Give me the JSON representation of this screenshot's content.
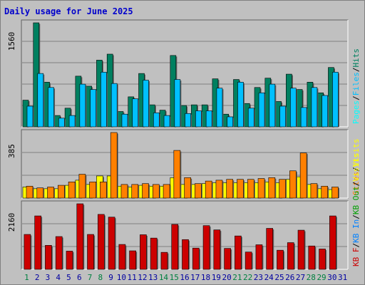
{
  "colors": {
    "frame_bg": "#c0c0c0",
    "plot_bg": "#c0c0c0",
    "title": "#0000cc",
    "hits": "#008060",
    "files": "#00c0ff",
    "pages": "#00ffff",
    "visits": "#ffff00",
    "sites": "#ff8000",
    "kb_f": "#cc0000",
    "kb_in": "#0080ff",
    "kb_out": "#00a000",
    "weekend_day": "#008040",
    "weekday_day": "#0000a0"
  },
  "chart_data": {
    "type": "bar",
    "title": "Daily usage for June 2025",
    "categories": [
      "1",
      "2",
      "3",
      "4",
      "5",
      "6",
      "7",
      "8",
      "9",
      "10",
      "11",
      "12",
      "13",
      "14",
      "15",
      "16",
      "17",
      "18",
      "19",
      "20",
      "21",
      "22",
      "23",
      "24",
      "25",
      "26",
      "27",
      "28",
      "29",
      "30",
      "31"
    ],
    "weekend_days": [
      "1",
      "7",
      "8",
      "14",
      "15",
      "21",
      "22",
      "28",
      "29"
    ],
    "panels": [
      {
        "id": "hits-files-pages",
        "ymax_label": "1560",
        "ylim": [
          0,
          1560
        ],
        "legend": [
          {
            "label": "Pages",
            "color": "#00ffff"
          },
          {
            "label": "/",
            "color": "#000000"
          },
          {
            "label": "Files",
            "color": "#00c0ff"
          },
          {
            "label": "/",
            "color": "#000000"
          },
          {
            "label": "Hits",
            "color": "#008060"
          }
        ],
        "series": [
          {
            "name": "Hits",
            "color": "#008060",
            "values": [
              400,
              1560,
              670,
              170,
              280,
              760,
              610,
              1000,
              1090,
              230,
              450,
              800,
              330,
              250,
              1070,
              320,
              330,
              330,
              720,
              190,
              710,
              350,
              590,
              730,
              380,
              790,
              560,
              670,
              510,
              890,
              0
            ]
          },
          {
            "name": "Files",
            "color": "#00c0ff",
            "values": [
              310,
              800,
              590,
              130,
              170,
              640,
              560,
              820,
              650,
              190,
              420,
              700,
              210,
              170,
              710,
              200,
              240,
              240,
              580,
              150,
              670,
              280,
              510,
              640,
              310,
              580,
              290,
              590,
              470,
              820,
              0
            ]
          },
          {
            "name": "Pages",
            "color": "#00ffff",
            "values": [
              0,
              0,
              0,
              0,
              0,
              0,
              0,
              0,
              0,
              0,
              0,
              0,
              0,
              0,
              0,
              0,
              0,
              0,
              0,
              0,
              0,
              0,
              0,
              0,
              0,
              0,
              0,
              0,
              0,
              0,
              0
            ]
          }
        ]
      },
      {
        "id": "visits-sites",
        "ymax_label": "385",
        "ylim": [
          0,
          385
        ],
        "legend": [
          {
            "label": "Sites",
            "color": "#ff8000"
          },
          {
            "label": "/",
            "color": "#000000"
          },
          {
            "label": "Visits",
            "color": "#ffff00"
          }
        ],
        "series": [
          {
            "name": "Visits",
            "color": "#ffff00",
            "values": [
              65,
              55,
              55,
              55,
              75,
              105,
              80,
              130,
              130,
              70,
              65,
              75,
              70,
              70,
              120,
              80,
              80,
              85,
              90,
              90,
              90,
              90,
              90,
              95,
              90,
              110,
              125,
              80,
              55,
              50,
              0
            ]
          },
          {
            "name": "Sites",
            "color": "#ff8000",
            "values": [
              70,
              60,
              65,
              75,
              95,
              140,
              95,
              95,
              385,
              80,
              80,
              85,
              80,
              80,
              280,
              120,
              85,
              100,
              105,
              110,
              110,
              110,
              115,
              120,
              110,
              160,
              265,
              85,
              70,
              65,
              0
            ]
          }
        ]
      },
      {
        "id": "kbytes",
        "ymax_label": "2160",
        "ylim": [
          0,
          2160
        ],
        "legend": [
          {
            "label": "KB F",
            "color": "#cc0000"
          },
          {
            "label": "/",
            "color": "#000000"
          },
          {
            "label": "KB In",
            "color": "#0080ff"
          },
          {
            "label": "/",
            "color": "#000000"
          },
          {
            "label": "KB Out",
            "color": "#00a000"
          },
          {
            "label": "/",
            "color": "#000000"
          },
          {
            "label": "Visits",
            "color": "#ffff00"
          }
        ],
        "series": [
          {
            "name": "KB F",
            "color": "#cc0000",
            "values": [
              1150,
              1760,
              790,
              1080,
              600,
              2160,
              1150,
              1810,
              1720,
              820,
              610,
              1140,
              1030,
              560,
              1480,
              980,
              700,
              1440,
              1300,
              690,
              1100,
              570,
              810,
              1350,
              630,
              880,
              1290,
              770,
              670,
              1760,
              0
            ]
          }
        ]
      }
    ]
  }
}
